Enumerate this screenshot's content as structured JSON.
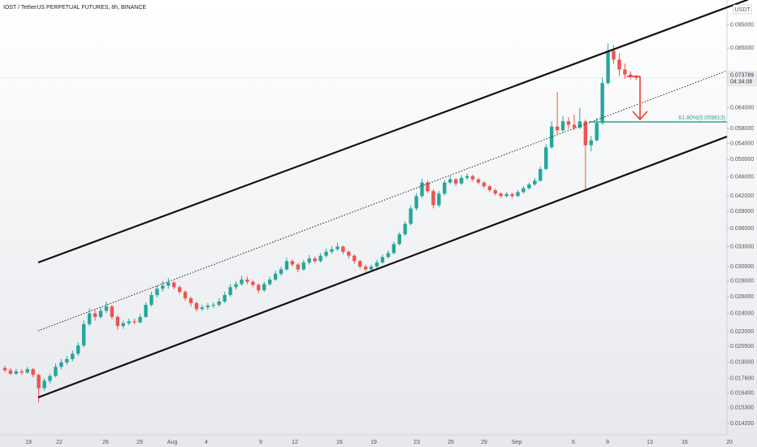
{
  "chart_data": {
    "type": "candlestick",
    "title": "IOST / TetherUS PERPETUAL FUTURES, 8h, BINANCE",
    "currency": "USDT",
    "log_scale": true,
    "up_color": "#26a69a",
    "down_color": "#ef5350",
    "ylim": [
      0.01345,
      0.107
    ],
    "yticks": [
      {
        "value": 0.0142,
        "label": "0.014200"
      },
      {
        "value": 0.0153,
        "label": "0.015300"
      },
      {
        "value": 0.0164,
        "label": "0.016400"
      },
      {
        "value": 0.0176,
        "label": "0.017600"
      },
      {
        "value": 0.019,
        "label": "0.019000"
      },
      {
        "value": 0.0205,
        "label": "0.020500"
      },
      {
        "value": 0.022,
        "label": "0.022000"
      },
      {
        "value": 0.024,
        "label": "0.024000"
      },
      {
        "value": 0.026,
        "label": "0.026000"
      },
      {
        "value": 0.028,
        "label": "0.028000"
      },
      {
        "value": 0.03,
        "label": "0.030000"
      },
      {
        "value": 0.033,
        "label": "0.033000"
      },
      {
        "value": 0.036,
        "label": "0.036000"
      },
      {
        "value": 0.039,
        "label": "0.039000"
      },
      {
        "value": 0.042,
        "label": "0.042000"
      },
      {
        "value": 0.046,
        "label": "0.046000"
      },
      {
        "value": 0.05,
        "label": "0.050000"
      },
      {
        "value": 0.054,
        "label": "0.054000"
      },
      {
        "value": 0.058,
        "label": "0.058000"
      },
      {
        "value": 0.064,
        "label": "0.064000"
      },
      {
        "value": 0.085,
        "label": "0.085000"
      },
      {
        "value": 0.095,
        "label": "0.095000"
      }
    ],
    "x_tick_labels": [
      "19",
      "22",
      "26",
      "29",
      "Aug",
      "4",
      "9",
      "12",
      "16",
      "19",
      "23",
      "26",
      "29",
      "Sep",
      "6",
      "9",
      "13",
      "16",
      "20"
    ],
    "countdown": "04:34:08",
    "fib": {
      "label": "61.80%(0.059813)",
      "level": 0.059813
    },
    "ohlc": [
      [
        0.0185,
        0.0187,
        0.0181,
        0.0183
      ],
      [
        0.0183,
        0.0185,
        0.0179,
        0.018
      ],
      [
        0.018,
        0.0184,
        0.0179,
        0.0182
      ],
      [
        0.0182,
        0.0184,
        0.0179,
        0.0181
      ],
      [
        0.0181,
        0.0186,
        0.018,
        0.0184
      ],
      [
        0.0184,
        0.0185,
        0.0177,
        0.0179
      ],
      [
        0.0179,
        0.018,
        0.0157,
        0.0168
      ],
      [
        0.0168,
        0.0176,
        0.0166,
        0.0174
      ],
      [
        0.0174,
        0.018,
        0.0172,
        0.0178
      ],
      [
        0.0178,
        0.0189,
        0.0177,
        0.0186
      ],
      [
        0.0186,
        0.0193,
        0.0184,
        0.019
      ],
      [
        0.019,
        0.0196,
        0.0188,
        0.0193
      ],
      [
        0.0193,
        0.0201,
        0.0191,
        0.0198
      ],
      [
        0.0198,
        0.0209,
        0.0196,
        0.0206
      ],
      [
        0.0206,
        0.0232,
        0.0204,
        0.0228
      ],
      [
        0.0228,
        0.0246,
        0.0226,
        0.024
      ],
      [
        0.024,
        0.0244,
        0.0232,
        0.0236
      ],
      [
        0.0236,
        0.0247,
        0.0234,
        0.0243
      ],
      [
        0.0243,
        0.0254,
        0.024,
        0.0248
      ],
      [
        0.0248,
        0.025,
        0.0233,
        0.0236
      ],
      [
        0.0236,
        0.0238,
        0.0222,
        0.0226
      ],
      [
        0.0226,
        0.0232,
        0.0223,
        0.0229
      ],
      [
        0.0229,
        0.0234,
        0.0227,
        0.0231
      ],
      [
        0.0231,
        0.0234,
        0.0228,
        0.023
      ],
      [
        0.023,
        0.0239,
        0.0229,
        0.0236
      ],
      [
        0.0236,
        0.0253,
        0.0235,
        0.025
      ],
      [
        0.025,
        0.0266,
        0.0248,
        0.0262
      ],
      [
        0.0262,
        0.0274,
        0.0259,
        0.027
      ],
      [
        0.027,
        0.028,
        0.0266,
        0.0274
      ],
      [
        0.0274,
        0.0284,
        0.027,
        0.0278
      ],
      [
        0.0278,
        0.028,
        0.0269,
        0.0272
      ],
      [
        0.0272,
        0.0274,
        0.0263,
        0.0266
      ],
      [
        0.0266,
        0.0268,
        0.0255,
        0.0258
      ],
      [
        0.0258,
        0.026,
        0.0248,
        0.0252
      ],
      [
        0.0252,
        0.0254,
        0.0242,
        0.0245
      ],
      [
        0.0245,
        0.025,
        0.0243,
        0.0247
      ],
      [
        0.0247,
        0.0252,
        0.0244,
        0.0249
      ],
      [
        0.0249,
        0.0253,
        0.0246,
        0.025
      ],
      [
        0.025,
        0.0258,
        0.0248,
        0.0254
      ],
      [
        0.0254,
        0.0266,
        0.0252,
        0.0262
      ],
      [
        0.0262,
        0.0276,
        0.026,
        0.0272
      ],
      [
        0.0272,
        0.028,
        0.0269,
        0.0276
      ],
      [
        0.0276,
        0.0287,
        0.0274,
        0.0282
      ],
      [
        0.0282,
        0.0286,
        0.0276,
        0.0279
      ],
      [
        0.0279,
        0.0281,
        0.0272,
        0.0275
      ],
      [
        0.0275,
        0.0277,
        0.0264,
        0.0268
      ],
      [
        0.0268,
        0.0279,
        0.0266,
        0.0276
      ],
      [
        0.0276,
        0.0286,
        0.0274,
        0.0282
      ],
      [
        0.0282,
        0.0294,
        0.028,
        0.029
      ],
      [
        0.029,
        0.03,
        0.0287,
        0.0296
      ],
      [
        0.0296,
        0.0313,
        0.0294,
        0.0308
      ],
      [
        0.0308,
        0.0311,
        0.03,
        0.0303
      ],
      [
        0.0303,
        0.0305,
        0.0292,
        0.0296
      ],
      [
        0.0296,
        0.031,
        0.0294,
        0.0306
      ],
      [
        0.0306,
        0.0317,
        0.0303,
        0.0312
      ],
      [
        0.0312,
        0.0315,
        0.0305,
        0.0308
      ],
      [
        0.0308,
        0.032,
        0.0306,
        0.0316
      ],
      [
        0.0316,
        0.0327,
        0.0313,
        0.0322
      ],
      [
        0.0322,
        0.0331,
        0.0319,
        0.0326
      ],
      [
        0.0326,
        0.0336,
        0.0323,
        0.033
      ],
      [
        0.033,
        0.0332,
        0.0318,
        0.0322
      ],
      [
        0.0322,
        0.0324,
        0.0312,
        0.0316
      ],
      [
        0.0316,
        0.0318,
        0.0304,
        0.0308
      ],
      [
        0.0308,
        0.031,
        0.0297,
        0.03
      ],
      [
        0.03,
        0.0303,
        0.0293,
        0.0296
      ],
      [
        0.0296,
        0.0303,
        0.0294,
        0.03
      ],
      [
        0.03,
        0.031,
        0.0298,
        0.0306
      ],
      [
        0.0306,
        0.0318,
        0.0304,
        0.0314
      ],
      [
        0.0314,
        0.0324,
        0.0312,
        0.032
      ],
      [
        0.032,
        0.0338,
        0.0318,
        0.0334
      ],
      [
        0.0334,
        0.0354,
        0.0332,
        0.035
      ],
      [
        0.035,
        0.0372,
        0.0347,
        0.0368
      ],
      [
        0.0368,
        0.0401,
        0.0365,
        0.0396
      ],
      [
        0.0396,
        0.0426,
        0.0392,
        0.042
      ],
      [
        0.042,
        0.0456,
        0.0416,
        0.0448
      ],
      [
        0.0448,
        0.0452,
        0.0426,
        0.043
      ],
      [
        0.043,
        0.0434,
        0.0396,
        0.0402
      ],
      [
        0.0402,
        0.043,
        0.0398,
        0.0425
      ],
      [
        0.0425,
        0.0454,
        0.0421,
        0.0448
      ],
      [
        0.0448,
        0.0462,
        0.0444,
        0.0455
      ],
      [
        0.0455,
        0.0458,
        0.044,
        0.0446
      ],
      [
        0.0446,
        0.0464,
        0.0443,
        0.0458
      ],
      [
        0.0458,
        0.0468,
        0.0454,
        0.0462
      ],
      [
        0.0462,
        0.0465,
        0.045,
        0.0455
      ],
      [
        0.0455,
        0.0458,
        0.0444,
        0.0448
      ],
      [
        0.0448,
        0.0451,
        0.0436,
        0.044
      ],
      [
        0.044,
        0.0443,
        0.0428,
        0.0432
      ],
      [
        0.0432,
        0.0435,
        0.0421,
        0.0425
      ],
      [
        0.0425,
        0.0428,
        0.0416,
        0.042
      ],
      [
        0.042,
        0.0428,
        0.0417,
        0.0424
      ],
      [
        0.0424,
        0.0427,
        0.0415,
        0.042
      ],
      [
        0.042,
        0.0432,
        0.0418,
        0.0428
      ],
      [
        0.0428,
        0.044,
        0.0425,
        0.0436
      ],
      [
        0.0436,
        0.0448,
        0.0433,
        0.0444
      ],
      [
        0.0444,
        0.0458,
        0.0441,
        0.0452
      ],
      [
        0.0452,
        0.0484,
        0.045,
        0.0478
      ],
      [
        0.0478,
        0.0538,
        0.0475,
        0.053
      ],
      [
        0.053,
        0.06,
        0.0526,
        0.0585
      ],
      [
        0.0585,
        0.069,
        0.0565,
        0.0575
      ],
      [
        0.0575,
        0.0615,
        0.057,
        0.06
      ],
      [
        0.06,
        0.0612,
        0.0578,
        0.059
      ],
      [
        0.059,
        0.062,
        0.0575,
        0.0582
      ],
      [
        0.0582,
        0.064,
        0.0578,
        0.06
      ],
      [
        0.06,
        0.0605,
        0.043,
        0.0535
      ],
      [
        0.0535,
        0.056,
        0.052,
        0.0548
      ],
      [
        0.0548,
        0.061,
        0.0545,
        0.0595
      ],
      [
        0.0595,
        0.074,
        0.059,
        0.072
      ],
      [
        0.072,
        0.087,
        0.0715,
        0.084
      ],
      [
        0.084,
        0.0862,
        0.079,
        0.0805
      ],
      [
        0.0805,
        0.083,
        0.0745,
        0.0768
      ],
      [
        0.0768,
        0.079,
        0.0735,
        0.075
      ],
      [
        0.075,
        0.076,
        0.0732,
        0.0742
      ],
      [
        0.0742,
        0.0748,
        0.073,
        0.073789
      ]
    ]
  }
}
